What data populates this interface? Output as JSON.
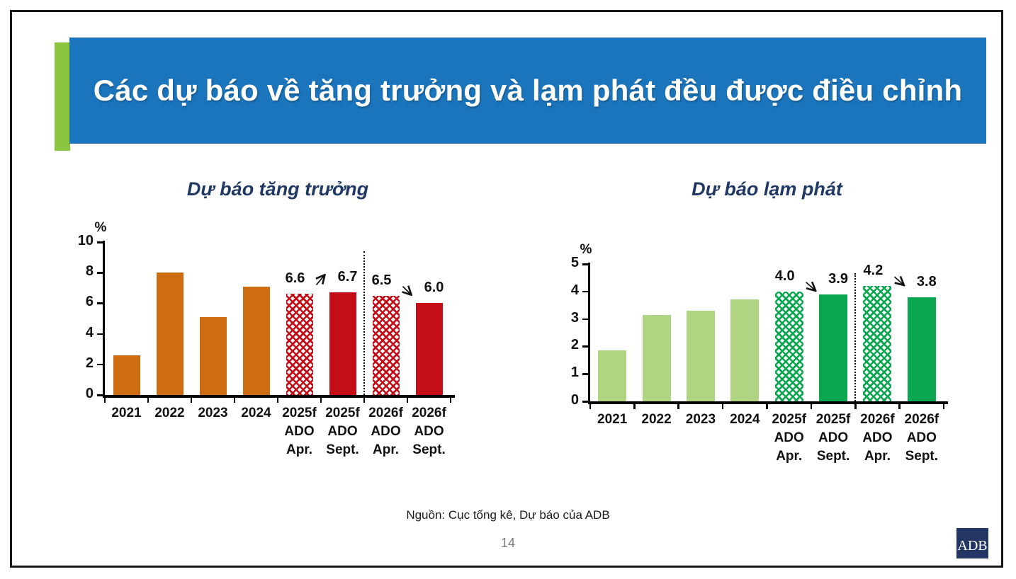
{
  "slide": {
    "title": "Các dự báo về tăng trưởng và lạm phát đều được điều chỉnh",
    "source": "Nguồn: Cục tống kê, Dự báo của ADB",
    "page_number": "14",
    "logo_text": "ADB"
  },
  "colors": {
    "header_bg": "#1B75BC",
    "accent_bar": "#8CC63F",
    "header_text": "#FFFFFF",
    "chart_title": "#1F3864",
    "growth_actual": "#CE6C12",
    "growth_forecast": "#C40D17",
    "inflation_actual": "#AFD482",
    "inflation_forecast": "#0AA750",
    "logo_bg": "#233663",
    "page_number_text": "#7F7F7F"
  },
  "chart_data": [
    {
      "type": "bar",
      "title": "Dự báo tăng trưởng",
      "xlabel": "",
      "ylabel": "%",
      "ylim": [
        0,
        10
      ],
      "yticks": [
        0,
        2,
        4,
        6,
        8,
        10
      ],
      "grid": false,
      "legend": "none",
      "categories": [
        [
          "2021"
        ],
        [
          "2022"
        ],
        [
          "2023"
        ],
        [
          "2024"
        ],
        [
          "2025f",
          "ADO",
          "Apr."
        ],
        [
          "2025f",
          "ADO",
          "Sept."
        ],
        [
          "2026f",
          "ADO",
          "Apr."
        ],
        [
          "2026f",
          "ADO",
          "Sept."
        ]
      ],
      "values": [
        2.6,
        8.0,
        5.1,
        7.1,
        6.6,
        6.7,
        6.5,
        6.0
      ],
      "bar_styles": [
        "actual",
        "actual",
        "actual",
        "actual",
        "hatched",
        "forecast",
        "hatched",
        "forecast"
      ],
      "data_labels": [
        null,
        null,
        null,
        null,
        "6.6",
        "6.7",
        "6.5",
        "6.0"
      ],
      "color_actual": "#CE6C12",
      "color_forecast": "#C40D17",
      "separator_after_index": 5,
      "annotations": [
        {
          "from_index": 4,
          "to_index": 5,
          "direction": "up"
        },
        {
          "from_index": 6,
          "to_index": 7,
          "direction": "down"
        }
      ]
    },
    {
      "type": "bar",
      "title": "Dự báo lạm phát",
      "xlabel": "",
      "ylabel": "%",
      "ylim": [
        0,
        5
      ],
      "yticks": [
        0,
        1,
        2,
        3,
        4,
        5
      ],
      "grid": false,
      "legend": "none",
      "categories": [
        [
          "2021"
        ],
        [
          "2022"
        ],
        [
          "2023"
        ],
        [
          "2024"
        ],
        [
          "2025f",
          "ADO",
          "Apr."
        ],
        [
          "2025f",
          "ADO",
          "Sept."
        ],
        [
          "2026f",
          "ADO",
          "Apr."
        ],
        [
          "2026f",
          "ADO",
          "Sept."
        ]
      ],
      "values": [
        1.85,
        3.15,
        3.3,
        3.7,
        4.0,
        3.9,
        4.2,
        3.8
      ],
      "bar_styles": [
        "actual",
        "actual",
        "actual",
        "actual",
        "hatched",
        "forecast",
        "hatched",
        "forecast"
      ],
      "data_labels": [
        null,
        null,
        null,
        null,
        "4.0",
        "3.9",
        "4.2",
        "3.8"
      ],
      "color_actual": "#AFD482",
      "color_forecast": "#0AA750",
      "separator_after_index": 5,
      "annotations": [
        {
          "from_index": 4,
          "to_index": 5,
          "direction": "down"
        },
        {
          "from_index": 6,
          "to_index": 7,
          "direction": "down"
        }
      ]
    }
  ]
}
